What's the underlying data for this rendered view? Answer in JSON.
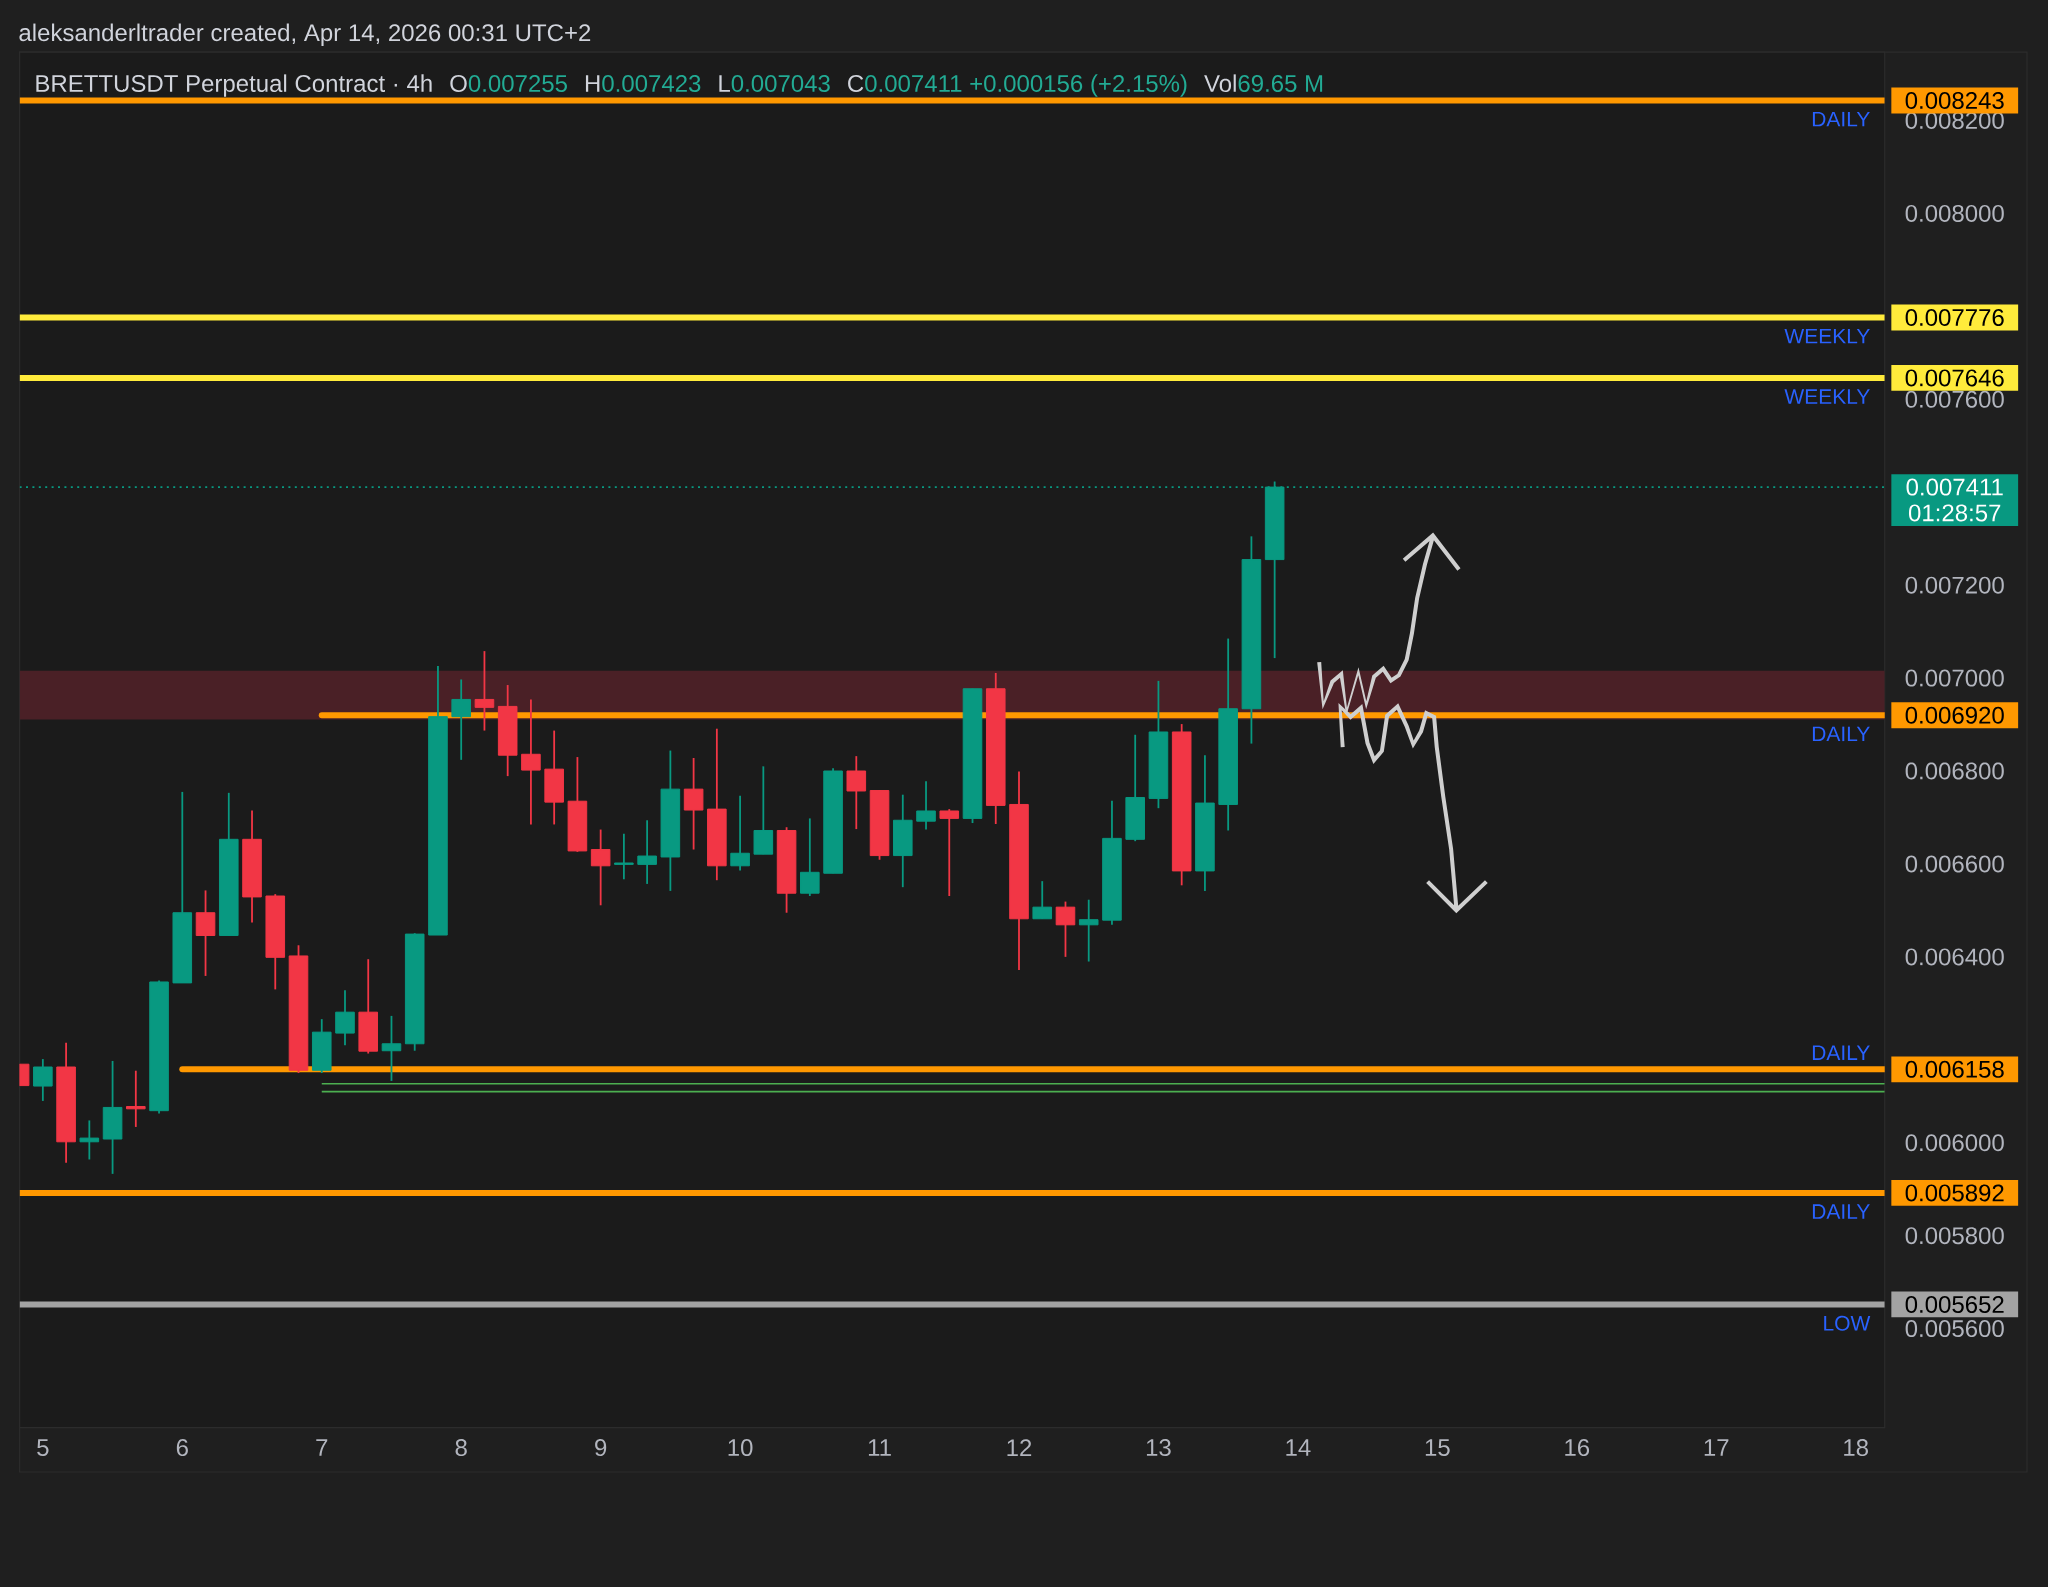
{
  "chart_data": {
    "type": "candlestick",
    "title": "BRETTUSDT Perpetual Contract · 4h",
    "annotations": [
      "aleksanderltrader created, Apr 14, 2026 00:31 UTC+2",
      "O",
      "0.007255",
      "H",
      "0.007423",
      "L",
      "0.007043",
      "C",
      "0.007411 +0.000156 (+2.15%)",
      "Vol",
      "69.65 M"
    ],
    "x": [
      "2026-04-04T22:00",
      "2026-04-05T02:00",
      "2026-04-05T06:00",
      "2026-04-05T10:00",
      "2026-04-05T14:00",
      "2026-04-05T18:00",
      "2026-04-05T22:00",
      "2026-04-06T02:00",
      "2026-04-06T06:00",
      "2026-04-06T10:00",
      "2026-04-06T14:00",
      "2026-04-06T18:00",
      "2026-04-06T22:00",
      "2026-04-07T02:00",
      "2026-04-07T06:00",
      "2026-04-07T10:00",
      "2026-04-07T14:00",
      "2026-04-07T18:00",
      "2026-04-07T22:00",
      "2026-04-08T02:00",
      "2026-04-08T06:00",
      "2026-04-08T10:00",
      "2026-04-08T14:00",
      "2026-04-08T18:00",
      "2026-04-08T22:00",
      "2026-04-09T02:00",
      "2026-04-09T06:00",
      "2026-04-09T10:00",
      "2026-04-09T14:00",
      "2026-04-09T18:00",
      "2026-04-09T22:00",
      "2026-04-10T02:00",
      "2026-04-10T06:00",
      "2026-04-10T10:00",
      "2026-04-10T14:00",
      "2026-04-10T18:00",
      "2026-04-10T22:00",
      "2026-04-11T02:00",
      "2026-04-11T06:00",
      "2026-04-11T10:00",
      "2026-04-11T14:00",
      "2026-04-11T18:00",
      "2026-04-11T22:00",
      "2026-04-12T02:00",
      "2026-04-12T06:00",
      "2026-04-12T10:00",
      "2026-04-12T14:00",
      "2026-04-12T18:00",
      "2026-04-12T22:00",
      "2026-04-13T02:00",
      "2026-04-13T06:00",
      "2026-04-13T10:00",
      "2026-04-13T14:00",
      "2026-04-13T18:00",
      "2026-04-13T22:00"
    ],
    "ohlc": [
      [
        0.006169,
        0.006169,
        0.006123,
        0.006123
      ],
      [
        0.006122,
        0.00618,
        0.00609,
        0.006163
      ],
      [
        0.006163,
        0.006215,
        0.005957,
        0.006002
      ],
      [
        0.006002,
        0.006048,
        0.005964,
        0.00601
      ],
      [
        0.006008,
        0.006176,
        0.005933,
        0.006076
      ],
      [
        0.006078,
        0.006155,
        0.006034,
        0.006073
      ],
      [
        0.006069,
        0.006349,
        0.006063,
        0.006346
      ],
      [
        0.006344,
        0.006755,
        0.006344,
        0.006495
      ],
      [
        0.006495,
        0.006543,
        0.006359,
        0.006446
      ],
      [
        0.006446,
        0.006753,
        0.006446,
        0.006653
      ],
      [
        0.006653,
        0.006715,
        0.006474,
        0.006529
      ],
      [
        0.006531,
        0.006535,
        0.00633,
        0.006399
      ],
      [
        0.006402,
        0.006425,
        0.00615,
        0.006156
      ],
      [
        0.006156,
        0.006266,
        0.00615,
        0.006238
      ],
      [
        0.006236,
        0.006328,
        0.00621,
        0.006281
      ],
      [
        0.006281,
        0.006395,
        0.006192,
        0.006197
      ],
      [
        0.006198,
        0.006273,
        0.006133,
        0.006213
      ],
      [
        0.006213,
        0.006451,
        0.006198,
        0.006449
      ],
      [
        0.006447,
        0.007026,
        0.006447,
        0.006917
      ],
      [
        0.006917,
        0.006997,
        0.006824,
        0.006954
      ],
      [
        0.006954,
        0.007058,
        0.006887,
        0.006937
      ],
      [
        0.006939,
        0.006985,
        0.006789,
        0.006834
      ],
      [
        0.006836,
        0.006954,
        0.006685,
        0.006802
      ],
      [
        0.006804,
        0.006887,
        0.006685,
        0.006733
      ],
      [
        0.006735,
        0.00683,
        0.006626,
        0.006628
      ],
      [
        0.006631,
        0.006674,
        0.006511,
        0.006596
      ],
      [
        0.006599,
        0.006665,
        0.006567,
        0.006602
      ],
      [
        0.006599,
        0.006694,
        0.006557,
        0.006617
      ],
      [
        0.006615,
        0.006844,
        0.006542,
        0.006761
      ],
      [
        0.006761,
        0.006828,
        0.006631,
        0.006716
      ],
      [
        0.006718,
        0.006891,
        0.006565,
        0.006596
      ],
      [
        0.006596,
        0.006747,
        0.006586,
        0.006623
      ],
      [
        0.006621,
        0.00681,
        0.006621,
        0.006672
      ],
      [
        0.006672,
        0.006679,
        0.006495,
        0.006537
      ],
      [
        0.006537,
        0.006698,
        0.006531,
        0.006582
      ],
      [
        0.00658,
        0.006806,
        0.00658,
        0.0068
      ],
      [
        0.0068,
        0.006832,
        0.006675,
        0.006757
      ],
      [
        0.006758,
        0.006758,
        0.006609,
        0.006618
      ],
      [
        0.006618,
        0.006749,
        0.00655,
        0.006694
      ],
      [
        0.006692,
        0.006778,
        0.006674,
        0.006714
      ],
      [
        0.006714,
        0.006718,
        0.006531,
        0.006698
      ],
      [
        0.006698,
        0.006977,
        0.006688,
        0.006977
      ],
      [
        0.006977,
        0.007011,
        0.006686,
        0.006726
      ],
      [
        0.006728,
        0.006799,
        0.006372,
        0.006482
      ],
      [
        0.006482,
        0.006563,
        0.006482,
        0.006507
      ],
      [
        0.006507,
        0.006519,
        0.0064,
        0.006469
      ],
      [
        0.006469,
        0.006523,
        0.00639,
        0.00648
      ],
      [
        0.006479,
        0.006736,
        0.006469,
        0.006655
      ],
      [
        0.006653,
        0.006878,
        0.006649,
        0.006743
      ],
      [
        0.006741,
        0.006994,
        0.00672,
        0.006884
      ],
      [
        0.006884,
        0.006901,
        0.006554,
        0.006585
      ],
      [
        0.006585,
        0.006834,
        0.006542,
        0.006731
      ],
      [
        0.006728,
        0.007085,
        0.006672,
        0.006934
      ],
      [
        0.006934,
        0.007305,
        0.006859,
        0.007255
      ],
      [
        0.007255,
        0.007423,
        0.007043,
        0.007411
      ]
    ],
    "colors": [
      "#f23645",
      "#089981",
      "#f23645",
      "#089981",
      "#089981",
      "#f23645",
      "#089981",
      "#089981",
      "#f23645",
      "#089981",
      "#f23645",
      "#f23645",
      "#f23645",
      "#089981",
      "#089981",
      "#f23645",
      "#089981",
      "#089981",
      "#089981",
      "#089981",
      "#f23645",
      "#f23645",
      "#f23645",
      "#f23645",
      "#f23645",
      "#f23645",
      "#089981",
      "#089981",
      "#089981",
      "#f23645",
      "#f23645",
      "#089981",
      "#089981",
      "#f23645",
      "#089981",
      "#089981",
      "#f23645",
      "#f23645",
      "#089981",
      "#089981",
      "#f23645",
      "#089981",
      "#f23645",
      "#f23645",
      "#089981",
      "#f23645",
      "#089981",
      "#089981",
      "#089981",
      "#089981",
      "#f23645",
      "#089981",
      "#089981",
      "#089981",
      "#089981"
    ],
    "series": [
      {
        "type": "line",
        "name": "DAILY",
        "color": "#ff9800",
        "x": [
          "2026-04-07T02:00",
          "2026-04-18T07:00"
        ],
        "values": [
          0.00692,
          0.00692
        ]
      },
      {
        "type": "line",
        "name": "DAILY",
        "color": "#ff9800",
        "x": [
          "2026-04-06T02:00",
          "2026-04-18T07:00"
        ],
        "values": [
          0.006158,
          0.006158
        ]
      },
      {
        "type": "line",
        "color": "#4caf50",
        "x": [
          "2026-04-07T02:00",
          "2026-04-18T07:00"
        ],
        "values": [
          0.006127,
          0.006127
        ]
      },
      {
        "type": "line",
        "color": "#4caf50",
        "x": [
          "2026-04-07T02:00",
          "2026-04-18T07:00"
        ],
        "values": [
          0.00611,
          0.00611
        ]
      }
    ],
    "ref_lines": [
      {
        "axis": "y",
        "value": 0.008243,
        "label": "DAILY",
        "color": "#ff9800"
      },
      {
        "axis": "y",
        "value": 0.007776,
        "label": "WEEKLY",
        "color": "#ffeb3b"
      },
      {
        "axis": "y",
        "value": 0.007646,
        "label": "WEEKLY",
        "color": "#ffeb3b"
      },
      {
        "axis": "y",
        "value": 0.007411,
        "label": "01:28:57",
        "color": "#089981",
        "line_style": "dotted"
      },
      {
        "axis": "y",
        "value": 0.005892,
        "label": "DAILY",
        "color": "#ff9800"
      },
      {
        "axis": "y",
        "value": 0.005652,
        "label": "LOW",
        "color": "#a3a3a3"
      }
    ],
    "bands": [
      {
        "axis": "y",
        "from": 0.006911,
        "to": 0.007016,
        "color": "#4a2026"
      }
    ],
    "xlim": [
      "2026-04-04T22:00",
      "2026-04-18T07:00"
    ],
    "xticks": [
      {
        "value": "2026-04-05T02:00",
        "label": "5"
      },
      {
        "value": "2026-04-06T02:00",
        "label": "6"
      },
      {
        "value": "2026-04-07T02:00",
        "label": "7"
      },
      {
        "value": "2026-04-08T02:00",
        "label": "8"
      },
      {
        "value": "2026-04-09T02:00",
        "label": "9"
      },
      {
        "value": "2026-04-10T02:00",
        "label": "10"
      },
      {
        "value": "2026-04-11T02:00",
        "label": "11"
      },
      {
        "value": "2026-04-12T02:00",
        "label": "12"
      },
      {
        "value": "2026-04-13T02:00",
        "label": "13"
      },
      {
        "value": "2026-04-14T02:00",
        "label": "14"
      },
      {
        "value": "2026-04-15T02:00",
        "label": "15"
      },
      {
        "value": "2026-04-16T02:00",
        "label": "16"
      },
      {
        "value": "2026-04-17T02:00",
        "label": "17"
      },
      {
        "value": "2026-04-18T02:00",
        "label": "18"
      }
    ],
    "ylim": [
      0.005387,
      0.008347
    ],
    "yticks": [
      {
        "value": 0.0056,
        "label": "0.005600"
      },
      {
        "value": 0.0058,
        "label": "0.005800"
      },
      {
        "value": 0.006,
        "label": "0.006000"
      },
      {
        "value": 0.0064,
        "label": "0.006400"
      },
      {
        "value": 0.0066,
        "label": "0.006600"
      },
      {
        "value": 0.0068,
        "label": "0.006800"
      },
      {
        "value": 0.007,
        "label": "0.007000"
      },
      {
        "value": 0.0072,
        "label": "0.007200"
      },
      {
        "value": 0.0076,
        "label": "0.007600"
      },
      {
        "value": 0.008,
        "label": "0.008000"
      },
      {
        "value": 0.0082,
        "label": "0.008200"
      },
      {
        "value": 0.005652,
        "label": "0.005652"
      },
      {
        "value": 0.005892,
        "label": "0.005892"
      },
      {
        "value": 0.006158,
        "label": "0.006158"
      },
      {
        "value": 0.00692,
        "label": "0.006920"
      },
      {
        "value": 0.007411,
        "label": "0.007411"
      },
      {
        "value": 0.007646,
        "label": "0.007646"
      },
      {
        "value": 0.007776,
        "label": "0.007776"
      },
      {
        "value": 0.008243,
        "label": "0.008243"
      }
    ]
  }
}
